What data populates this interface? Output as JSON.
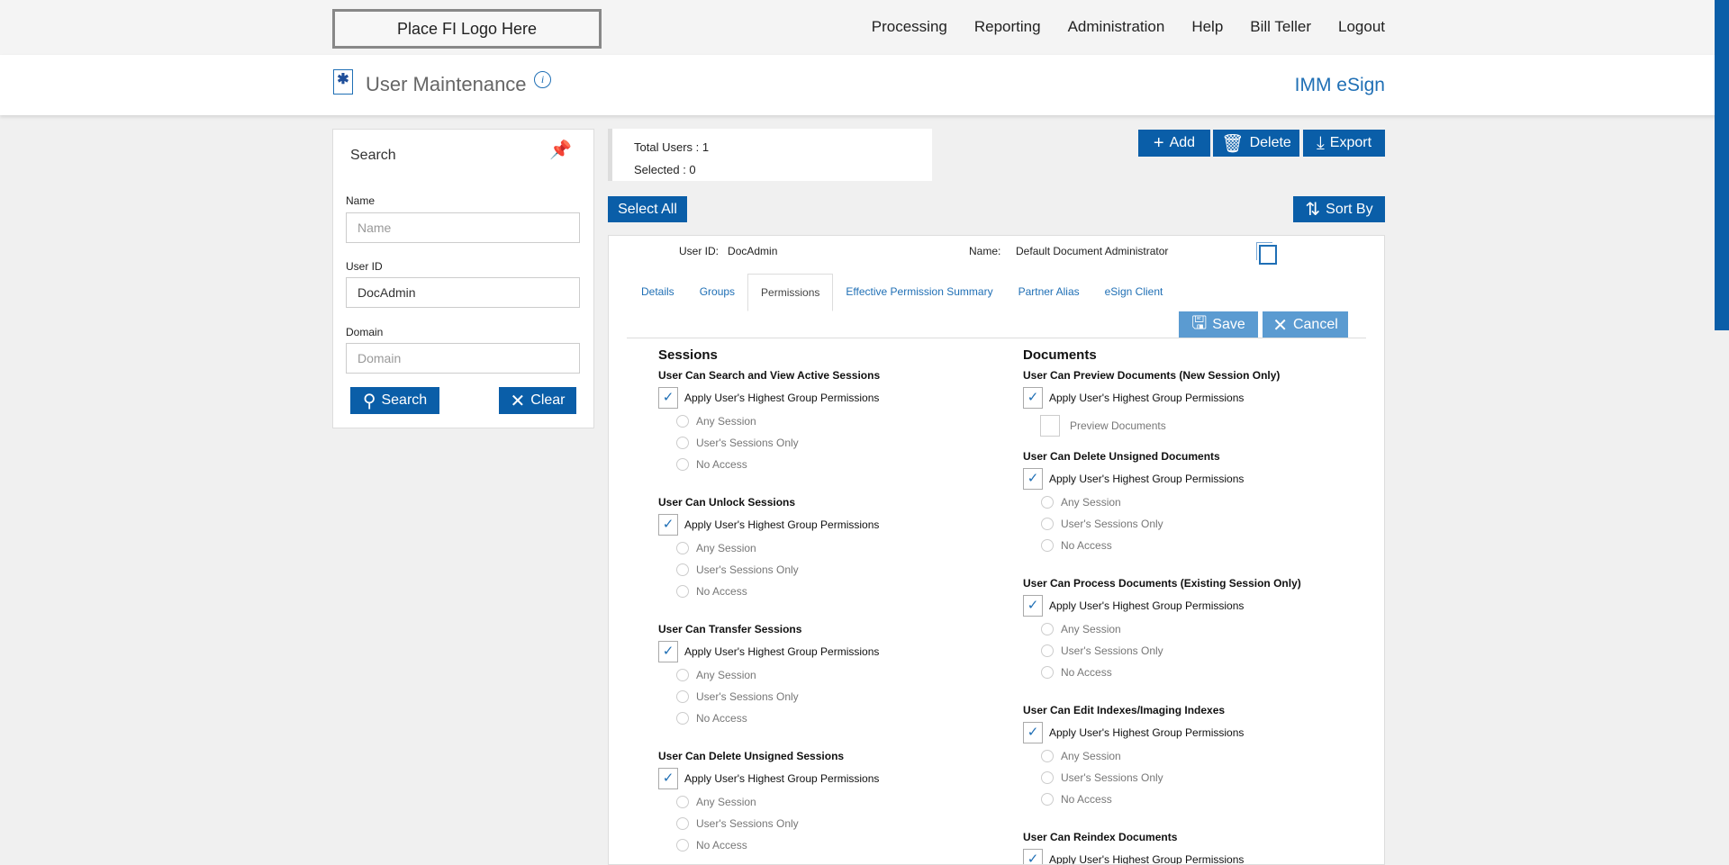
{
  "topbar": {
    "logo": "Place FI Logo Here",
    "nav": [
      "Processing",
      "Reporting",
      "Administration",
      "Help",
      "Bill Teller",
      "Logout"
    ]
  },
  "header": {
    "title": "User Maintenance",
    "app_name": "IMM eSign"
  },
  "search": {
    "title": "Search",
    "name_label": "Name",
    "name_placeholder": "Name",
    "name_value": "",
    "userid_label": "User ID",
    "userid_value": "DocAdmin",
    "domain_label": "Domain",
    "domain_placeholder": "Domain",
    "domain_value": "",
    "search_btn": "Search",
    "clear_btn": "Clear"
  },
  "stats": {
    "total": "Total Users : 1",
    "selected": "Selected : 0"
  },
  "toolbar": {
    "add": "Add",
    "delete": "Delete",
    "export": "Export",
    "select_all": "Select All",
    "sort_by": "Sort By"
  },
  "user": {
    "id_label": "User ID:",
    "id": "DocAdmin",
    "name_label": "Name:",
    "name": "Default Document Administrator"
  },
  "tabs": [
    "Details",
    "Groups",
    "Permissions",
    "Effective Permission Summary",
    "Partner Alias",
    "eSign Client"
  ],
  "active_tab": "Permissions",
  "actions": {
    "save": "Save",
    "cancel": "Cancel"
  },
  "apply_label": "Apply User's Highest Group Permissions",
  "radio_options": [
    "Any Session",
    "User's Sessions Only",
    "No Access"
  ],
  "sessions": {
    "title": "Sessions",
    "groups": [
      "User Can Search and View Active Sessions",
      "User Can Unlock Sessions",
      "User Can Transfer Sessions",
      "User Can Delete Unsigned Sessions"
    ]
  },
  "documents": {
    "title": "Documents",
    "preview_heading": "User Can Preview Documents (New Session Only)",
    "preview_option": "Preview Documents",
    "groups": [
      "User Can Delete Unsigned Documents",
      "User Can Process Documents (Existing Session Only)",
      "User Can Edit Indexes/Imaging Indexes"
    ],
    "last_heading": "User Can Reindex Documents"
  }
}
